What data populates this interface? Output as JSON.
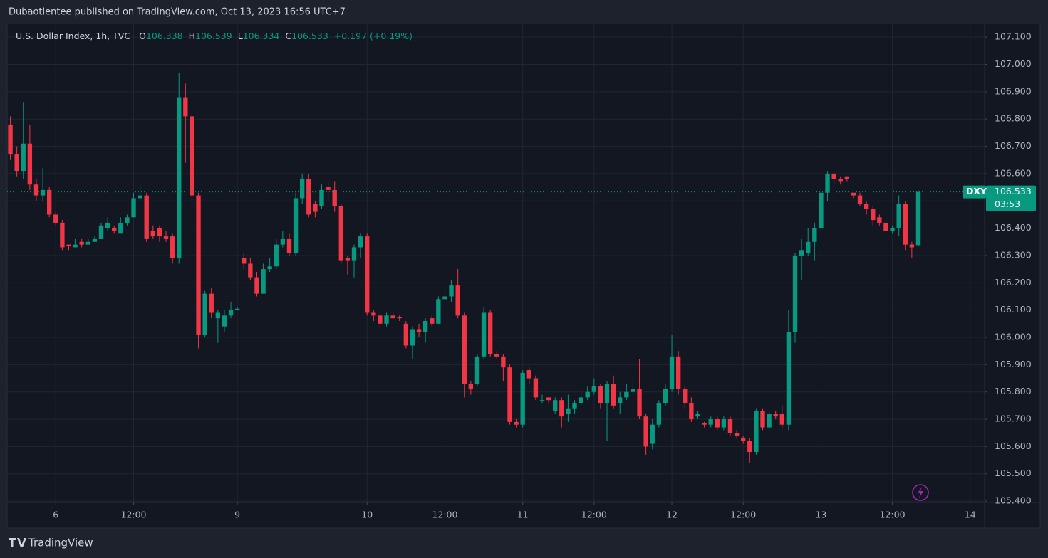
{
  "header": {
    "publisher": "Dubaotientee published on TradingView.com, Oct 13, 2023 16:56 UTC+7"
  },
  "footer": {
    "brand": "TradingView"
  },
  "ohlc_header": {
    "open_label": "O",
    "open": 106.338,
    "high_label": "H",
    "high": 106.539,
    "low_label": "L",
    "low": 106.334,
    "close_label": "C",
    "close": 106.533,
    "change": "+0.197 (+0.19%)"
  },
  "last_price": {
    "symbol": "DXY",
    "value": 106.533,
    "countdown": "03:53"
  },
  "chart_data": {
    "type": "candlestick",
    "title": "U.S. Dollar Index, 1h, TVC",
    "up_color": "#089981",
    "down_color": "#f23645",
    "grid": true,
    "xlim": [
      -0.5,
      150
    ],
    "ylim": [
      105.395,
      107.15
    ],
    "xticks": [
      {
        "value": 7,
        "label": "6"
      },
      {
        "value": 19,
        "label": "12:00"
      },
      {
        "value": 35,
        "label": "9"
      },
      {
        "value": 55,
        "label": "10"
      },
      {
        "value": 67,
        "label": "12:00"
      },
      {
        "value": 79,
        "label": "11"
      },
      {
        "value": 90,
        "label": "12:00"
      },
      {
        "value": 102,
        "label": "12"
      },
      {
        "value": 113,
        "label": "12:00"
      },
      {
        "value": 125,
        "label": "13"
      },
      {
        "value": 136,
        "label": "12:00"
      },
      {
        "value": 148,
        "label": "14"
      }
    ],
    "yticks": [
      {
        "value": 105.4,
        "label": "105.400"
      },
      {
        "value": 105.5,
        "label": "105.500"
      },
      {
        "value": 105.6,
        "label": "105.600"
      },
      {
        "value": 105.7,
        "label": "105.700"
      },
      {
        "value": 105.8,
        "label": "105.800"
      },
      {
        "value": 105.9,
        "label": "105.900"
      },
      {
        "value": 106.0,
        "label": "106.000"
      },
      {
        "value": 106.1,
        "label": "106.100"
      },
      {
        "value": 106.2,
        "label": "106.200"
      },
      {
        "value": 106.3,
        "label": "106.300"
      },
      {
        "value": 106.4,
        "label": "106.400"
      },
      {
        "value": 106.5,
        "label": "106.500"
      },
      {
        "value": 106.6,
        "label": "106.600"
      },
      {
        "value": 106.7,
        "label": "106.700"
      },
      {
        "value": 106.8,
        "label": "106.800"
      },
      {
        "value": 106.9,
        "label": "106.900"
      },
      {
        "value": 107.0,
        "label": "107.000"
      },
      {
        "value": 107.1,
        "label": "107.100"
      }
    ],
    "x": [
      0,
      1,
      2,
      3,
      4,
      5,
      6,
      7,
      8,
      9,
      10,
      11,
      12,
      13,
      14,
      15,
      16,
      17,
      18,
      19,
      20,
      21,
      22,
      23,
      24,
      25,
      26,
      27,
      28,
      29,
      30,
      31,
      32,
      33,
      34,
      35,
      36,
      37,
      38,
      39,
      40,
      41,
      42,
      43,
      44,
      45,
      46,
      47,
      48,
      49,
      50,
      51,
      52,
      53,
      54,
      55,
      56,
      57,
      58,
      59,
      60,
      61,
      62,
      63,
      64,
      65,
      66,
      67,
      68,
      69,
      70,
      71,
      72,
      73,
      74,
      75,
      76,
      77,
      78,
      79,
      80,
      81,
      82,
      83,
      84,
      85,
      86,
      87,
      88,
      89,
      90,
      91,
      92,
      93,
      94,
      95,
      96,
      97,
      98,
      99,
      100,
      101,
      102,
      103,
      104,
      105,
      106,
      107,
      108,
      109,
      110,
      111,
      112,
      113,
      114,
      115,
      116,
      117,
      118,
      119,
      120,
      121,
      122,
      123,
      124,
      125,
      126,
      127,
      128,
      129,
      130,
      131,
      132,
      133,
      134,
      135,
      136,
      137,
      138,
      139,
      140
    ],
    "open": [
      106.78,
      106.67,
      106.61,
      106.71,
      106.56,
      106.52,
      106.54,
      106.45,
      106.42,
      106.34,
      106.33,
      106.35,
      106.34,
      106.35,
      106.36,
      106.4,
      106.4,
      106.38,
      106.42,
      106.44,
      106.51,
      106.52,
      106.39,
      106.4,
      106.37,
      106.37,
      106.29,
      106.88,
      106.81,
      106.52,
      106.01,
      106.16,
      106.07,
      106.04,
      106.08,
      106.1,
      106.29,
      106.27,
      106.22,
      106.16,
      106.25,
      106.26,
      106.34,
      106.36,
      106.31,
      106.51,
      106.58,
      106.49,
      106.48,
      106.55,
      106.54,
      106.48,
      106.29,
      106.28,
      106.33,
      106.37,
      106.09,
      106.08,
      106.05,
      106.08,
      106.075,
      106.05,
      105.97,
      106.03,
      106.02,
      106.07,
      106.05,
      106.14,
      106.15,
      106.19,
      106.08,
      105.83,
      105.83,
      105.93,
      106.09,
      105.94,
      105.93,
      105.89,
      105.69,
      105.68,
      105.88,
      105.85,
      105.77,
      105.78,
      105.73,
      105.77,
      105.72,
      105.74,
      105.76,
      105.78,
      105.8,
      105.82,
      105.76,
      105.83,
      105.76,
      105.78,
      105.8,
      105.81,
      105.71,
      105.61,
      105.68,
      105.76,
      105.81,
      105.93,
      105.81,
      105.76,
      105.71,
      105.685,
      105.68,
      105.7,
      105.67,
      105.7,
      105.65,
      105.63,
      105.62,
      105.58,
      105.73,
      105.67,
      105.72,
      105.72,
      105.68,
      106.02,
      106.3,
      106.31,
      106.35,
      106.4,
      106.53,
      106.6,
      106.58,
      106.59,
      106.53,
      106.52,
      106.49,
      106.47,
      106.44,
      106.42,
      106.39,
      106.4,
      106.49,
      106.34,
      106.338
    ],
    "high": [
      106.81,
      106.7,
      106.86,
      106.78,
      106.58,
      106.62,
      106.55,
      106.46,
      106.43,
      106.34,
      106.36,
      106.36,
      106.36,
      106.37,
      106.42,
      106.44,
      106.41,
      106.44,
      106.45,
      106.53,
      106.56,
      106.53,
      106.41,
      106.41,
      106.39,
      106.38,
      106.97,
      106.93,
      106.82,
      106.53,
      106.17,
      106.18,
      106.1,
      106.1,
      106.13,
      106.11,
      106.31,
      106.29,
      106.24,
      106.27,
      106.29,
      106.36,
      106.39,
      106.38,
      106.53,
      106.6,
      106.6,
      106.5,
      106.56,
      106.57,
      106.57,
      106.49,
      106.3,
      106.34,
      106.38,
      106.38,
      106.1,
      106.09,
      106.09,
      106.09,
      106.08,
      106.06,
      106.04,
      106.05,
      106.07,
      106.08,
      106.15,
      106.18,
      106.21,
      106.25,
      106.09,
      105.84,
      105.94,
      106.11,
      106.1,
      105.95,
      105.94,
      105.9,
      105.7,
      105.88,
      105.89,
      105.86,
      105.79,
      105.78,
      105.78,
      105.78,
      105.79,
      105.77,
      105.8,
      105.82,
      105.85,
      105.83,
      105.84,
      105.86,
      105.8,
      105.83,
      105.85,
      105.92,
      105.72,
      105.7,
      105.77,
      105.83,
      106.01,
      105.95,
      105.82,
      105.78,
      105.73,
      105.69,
      105.71,
      105.71,
      105.71,
      105.71,
      105.66,
      105.64,
      105.63,
      105.74,
      105.74,
      105.73,
      105.73,
      105.75,
      106.1,
      106.31,
      106.36,
      106.4,
      106.42,
      106.55,
      106.61,
      106.61,
      106.59,
      106.59,
      106.53,
      106.53,
      106.5,
      106.48,
      106.45,
      106.43,
      106.41,
      106.52,
      106.5,
      106.35,
      106.539
    ],
    "low": [
      106.65,
      106.59,
      106.58,
      106.54,
      106.5,
      106.5,
      106.44,
      106.41,
      106.32,
      106.32,
      106.33,
      106.33,
      106.34,
      106.35,
      106.36,
      106.39,
      106.38,
      106.38,
      106.41,
      106.44,
      106.5,
      106.35,
      106.36,
      106.35,
      106.35,
      106.27,
      106.27,
      106.64,
      106.5,
      105.96,
      106.0,
      106.07,
      105.98,
      106.02,
      106.07,
      106.1,
      106.25,
      106.21,
      106.15,
      106.16,
      106.24,
      106.25,
      106.33,
      106.3,
      106.3,
      106.49,
      106.44,
      106.44,
      106.47,
      106.5,
      106.46,
      106.27,
      106.23,
      106.22,
      106.29,
      106.08,
      106.06,
      106.03,
      106.04,
      106.07,
      106.06,
      105.96,
      105.92,
      106.0,
      105.98,
      106.04,
      106.05,
      106.13,
      106.13,
      106.07,
      105.78,
      105.79,
      105.82,
      105.92,
      105.93,
      105.92,
      105.84,
      105.68,
      105.67,
      105.67,
      105.83,
      105.77,
      105.76,
      105.76,
      105.72,
      105.67,
      105.69,
      105.72,
      105.75,
      105.77,
      105.79,
      105.74,
      105.62,
      105.74,
      105.72,
      105.77,
      105.79,
      105.7,
      105.57,
      105.59,
      105.67,
      105.75,
      105.8,
      105.79,
      105.74,
      105.69,
      105.7,
      105.67,
      105.67,
      105.66,
      105.66,
      105.64,
      105.63,
      105.61,
      105.54,
      105.57,
      105.66,
      105.66,
      105.7,
      105.67,
      105.66,
      105.98,
      106.21,
      106.3,
      106.28,
      106.39,
      106.5,
      106.56,
      106.56,
      106.57,
      106.51,
      106.48,
      106.45,
      106.41,
      106.41,
      106.37,
      106.38,
      106.37,
      106.32,
      106.29,
      106.334
    ],
    "close": [
      106.67,
      106.61,
      106.71,
      106.56,
      106.52,
      106.54,
      106.45,
      106.42,
      106.33,
      106.335,
      106.34,
      106.34,
      106.35,
      106.36,
      106.41,
      106.42,
      106.39,
      106.42,
      106.44,
      106.51,
      106.52,
      106.36,
      106.37,
      106.37,
      106.36,
      106.29,
      106.88,
      106.81,
      106.52,
      106.01,
      106.16,
      106.09,
      106.09,
      106.08,
      106.1,
      106.105,
      106.27,
      106.22,
      106.16,
      106.25,
      106.26,
      106.34,
      106.36,
      106.31,
      106.51,
      106.58,
      106.45,
      106.46,
      106.54,
      106.54,
      106.48,
      106.28,
      106.28,
      106.33,
      106.37,
      106.09,
      106.08,
      106.05,
      106.08,
      106.07,
      106.07,
      105.97,
      106.03,
      106.02,
      106.06,
      106.05,
      106.14,
      106.15,
      106.19,
      106.08,
      105.83,
      105.81,
      105.93,
      106.09,
      105.94,
      105.93,
      105.89,
      105.69,
      105.68,
      105.87,
      105.85,
      105.78,
      105.77,
      105.77,
      105.77,
      105.71,
      105.74,
      105.76,
      105.78,
      105.8,
      105.82,
      105.76,
      105.83,
      105.75,
      105.78,
      105.8,
      105.81,
      105.71,
      105.6,
      105.68,
      105.76,
      105.81,
      105.93,
      105.81,
      105.76,
      105.7,
      105.72,
      105.68,
      105.7,
      105.67,
      105.7,
      105.65,
      105.64,
      105.62,
      105.58,
      105.73,
      105.67,
      105.72,
      105.71,
      105.68,
      106.02,
      106.3,
      106.32,
      106.35,
      106.4,
      106.53,
      106.6,
      106.58,
      106.57,
      106.58,
      106.52,
      106.49,
      106.47,
      106.43,
      106.42,
      106.39,
      106.4,
      106.49,
      106.34,
      106.33,
      106.533
    ]
  }
}
